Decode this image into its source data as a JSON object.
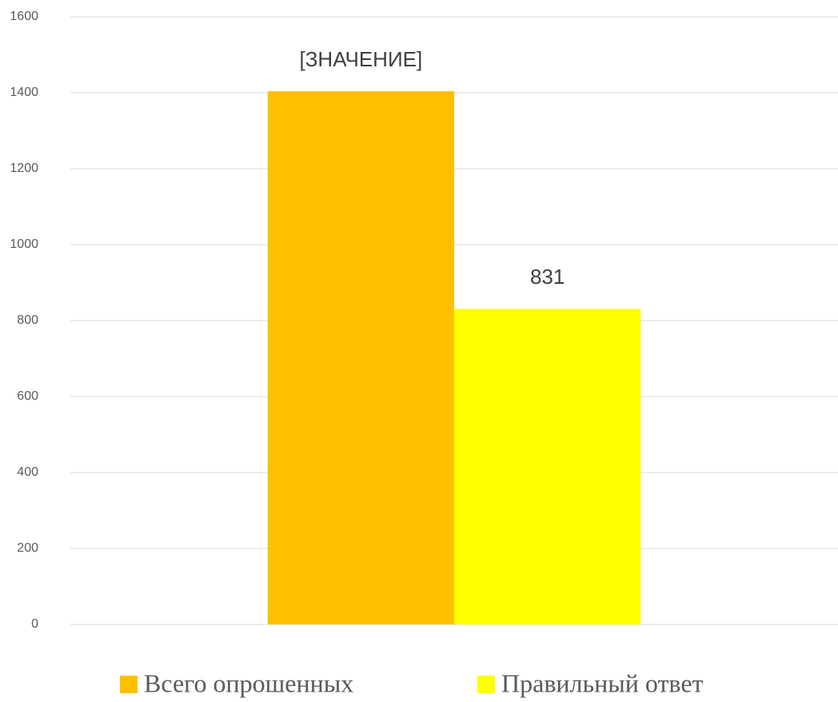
{
  "chart_data": {
    "type": "bar",
    "categories": [
      null
    ],
    "series": [
      {
        "name": "Всего опрошенных",
        "color": "#ffc000",
        "values": [
          1404
        ],
        "value_labels": [
          "[ЗНАЧЕНИЕ]"
        ]
      },
      {
        "name": "Правильный ответ",
        "color": "#ffff00",
        "values": [
          831
        ]
      }
    ],
    "ylim": [
      0,
      1600
    ],
    "yticks": [
      0,
      200,
      400,
      600,
      800,
      1000,
      1200,
      1400,
      1600
    ],
    "grid": true,
    "legend": "bottom"
  }
}
